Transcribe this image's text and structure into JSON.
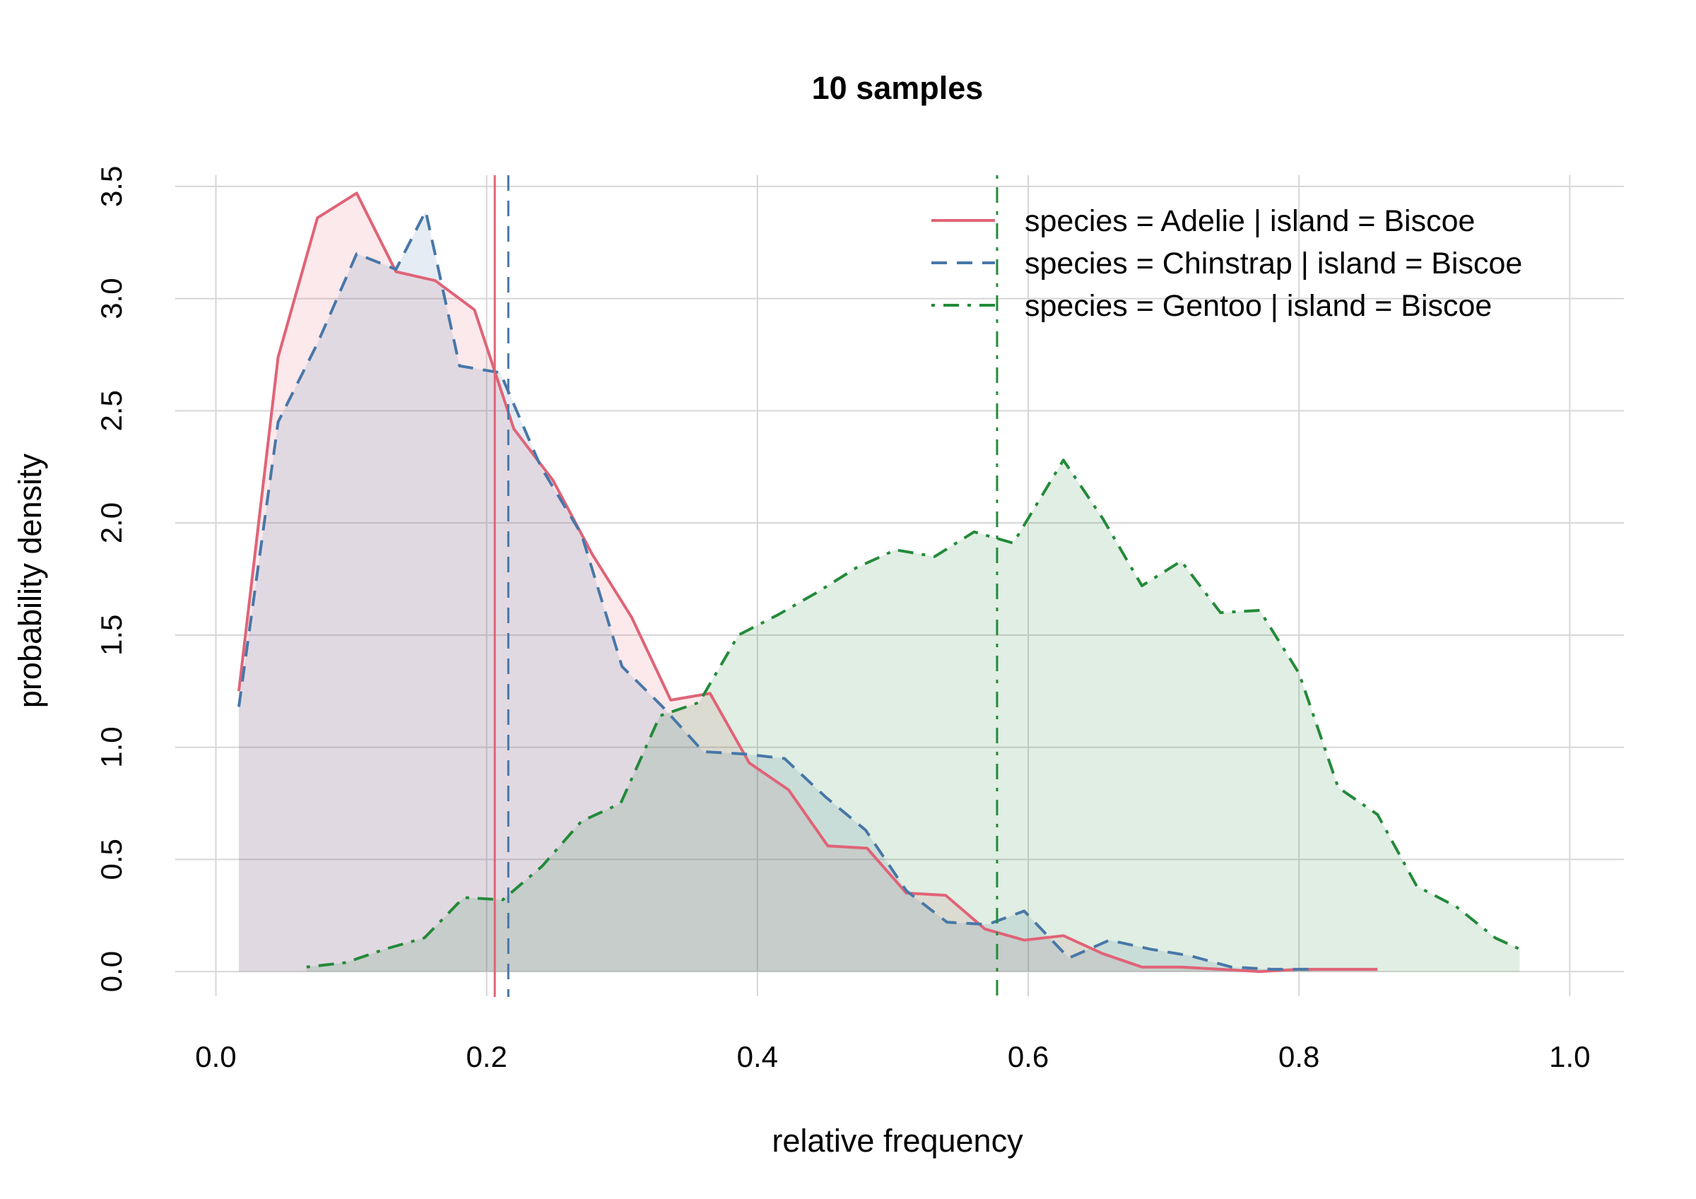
{
  "chart_data": {
    "type": "area",
    "title": "10 samples",
    "xlabel": "relative frequency",
    "ylabel": "probability density",
    "xlim": [
      -0.03,
      1.04
    ],
    "ylim": [
      -0.11,
      3.55
    ],
    "x_ticks": [
      "0.0",
      "0.2",
      "0.4",
      "0.6",
      "0.8",
      "1.0"
    ],
    "x_tick_values": [
      0,
      0.2,
      0.4,
      0.6,
      0.8,
      1.0
    ],
    "y_ticks": [
      "0.0",
      "0.5",
      "1.0",
      "1.5",
      "2.0",
      "2.5",
      "3.0",
      "3.5"
    ],
    "y_tick_values": [
      0,
      0.5,
      1.0,
      1.5,
      2.0,
      2.5,
      3.0,
      3.5
    ],
    "grid": true,
    "legend_position": "top-right",
    "series": [
      {
        "name": "species = Adelie | island = Biscoe",
        "color": "#e06377",
        "dash": "solid",
        "mean": 0.206,
        "x": [
          0.017,
          0.046,
          0.075,
          0.104,
          0.133,
          0.162,
          0.191,
          0.22,
          0.249,
          0.278,
          0.307,
          0.336,
          0.365,
          0.394,
          0.423,
          0.452,
          0.481,
          0.51,
          0.539,
          0.568,
          0.597,
          0.626,
          0.655,
          0.684,
          0.713,
          0.742,
          0.771,
          0.8,
          0.829,
          0.858
        ],
        "y": [
          1.25,
          2.74,
          3.36,
          3.47,
          3.12,
          3.08,
          2.95,
          2.42,
          2.19,
          1.86,
          1.58,
          1.21,
          1.24,
          0.93,
          0.81,
          0.56,
          0.55,
          0.35,
          0.34,
          0.19,
          0.14,
          0.16,
          0.08,
          0.02,
          0.02,
          0.01,
          0.0,
          0.01,
          0.01,
          0.01
        ]
      },
      {
        "name": "species = Chinstrap | island = Biscoe",
        "color": "#4877a8",
        "dash": "dashed",
        "mean": 0.216,
        "x": [
          0.017,
          0.046,
          0.075,
          0.104,
          0.133,
          0.155,
          0.18,
          0.21,
          0.24,
          0.27,
          0.3,
          0.33,
          0.36,
          0.39,
          0.42,
          0.45,
          0.48,
          0.51,
          0.54,
          0.57,
          0.597,
          0.63,
          0.66,
          0.69,
          0.72,
          0.75,
          0.78,
          0.81
        ],
        "y": [
          1.18,
          2.45,
          2.8,
          3.2,
          3.13,
          3.39,
          2.7,
          2.67,
          2.25,
          1.95,
          1.36,
          1.18,
          0.98,
          0.97,
          0.95,
          0.78,
          0.63,
          0.36,
          0.22,
          0.21,
          0.27,
          0.06,
          0.14,
          0.1,
          0.07,
          0.02,
          0.01,
          0.01
        ]
      },
      {
        "name": "species = Gentoo | island = Biscoe",
        "color": "#238a3a",
        "dash": "dotdash",
        "mean": 0.577,
        "x": [
          0.067,
          0.096,
          0.125,
          0.154,
          0.183,
          0.212,
          0.241,
          0.27,
          0.299,
          0.328,
          0.357,
          0.386,
          0.415,
          0.444,
          0.473,
          0.502,
          0.531,
          0.56,
          0.589,
          0.626,
          0.655,
          0.684,
          0.713,
          0.742,
          0.771,
          0.8,
          0.829,
          0.858,
          0.887,
          0.916,
          0.945,
          0.963
        ],
        "y": [
          0.02,
          0.04,
          0.1,
          0.15,
          0.33,
          0.32,
          0.47,
          0.67,
          0.75,
          1.14,
          1.2,
          1.5,
          1.59,
          1.69,
          1.8,
          1.88,
          1.85,
          1.96,
          1.91,
          2.28,
          2.02,
          1.72,
          1.83,
          1.6,
          1.61,
          1.33,
          0.82,
          0.7,
          0.38,
          0.29,
          0.15,
          0.1
        ]
      }
    ]
  }
}
